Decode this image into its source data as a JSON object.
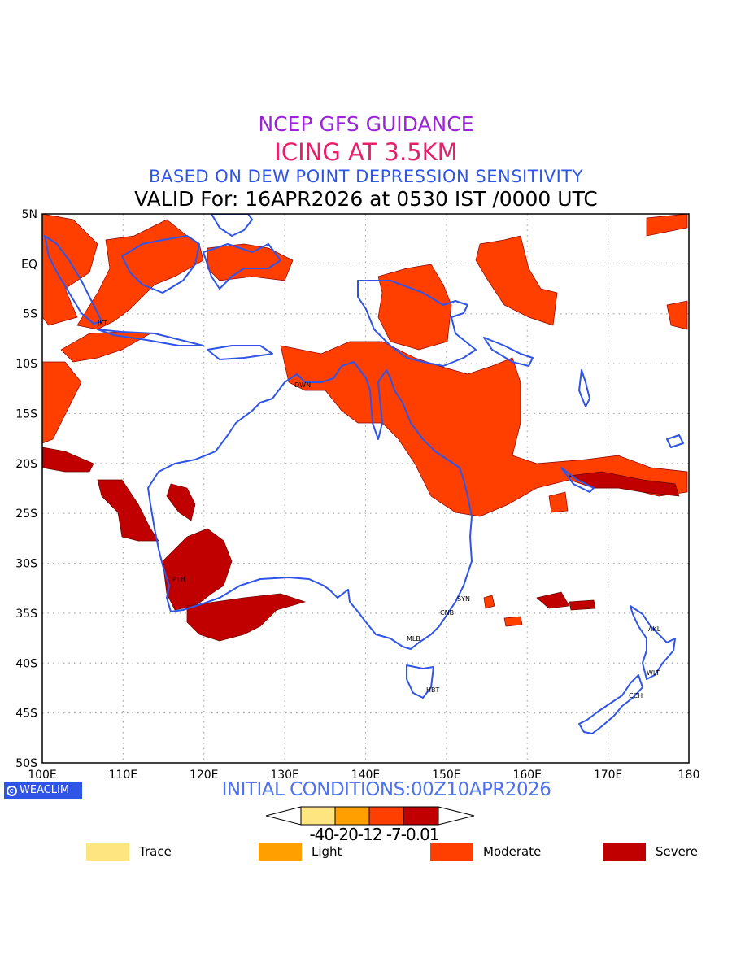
{
  "titles": {
    "line1": "NCEP GFS GUIDANCE",
    "line2": "ICING AT 3.5KM",
    "line3": "BASED ON DEW POINT DEPRESSION SENSITIVITY",
    "line4": "VALID For: 16APR2026 at 0530 IST /0000 UTC"
  },
  "axes": {
    "lat_labels": [
      "5N",
      "EQ",
      "5S",
      "10S",
      "15S",
      "20S",
      "25S",
      "30S",
      "35S",
      "40S",
      "45S",
      "50S"
    ],
    "lon_labels": [
      "100E",
      "110E",
      "120E",
      "130E",
      "140E",
      "150E",
      "160E",
      "170E",
      "180"
    ],
    "lat_range": [
      -50,
      5
    ],
    "lon_range": [
      100,
      180
    ]
  },
  "stations": [
    "PTH",
    "DWN",
    "SYN",
    "CNB",
    "MLB",
    "HBT",
    "AKL",
    "WLT",
    "CCH",
    "JKT"
  ],
  "footer": {
    "initial_conditions": "INITIAL CONDITIONS:00Z10APR2026",
    "brand": "WEACLIM"
  },
  "colorbar": {
    "labels": "-40-20-12 -7-0.01",
    "colors": [
      "#ffe57f",
      "#ffa000",
      "#ff3f00",
      "#c00000"
    ]
  },
  "legend": [
    {
      "label": "Trace",
      "color": "#ffe57f"
    },
    {
      "label": "Light",
      "color": "#ffa000"
    },
    {
      "label": "Moderate",
      "color": "#ff3f00"
    },
    {
      "label": "Severe",
      "color": "#c00000"
    }
  ],
  "colors": {
    "coastline": "#2f55e8",
    "moderate": "#ff3f00",
    "severe": "#c00000"
  }
}
